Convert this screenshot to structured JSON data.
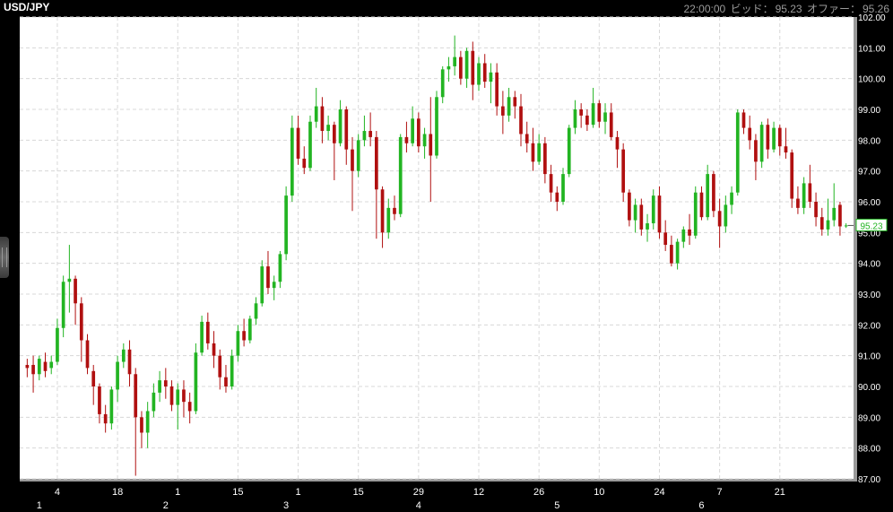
{
  "header": {
    "symbol": "USD/JPY",
    "time": "22:00:00",
    "bid_label": "ビッド：",
    "bid_value": "95.23",
    "offer_label": "オファー：",
    "offer_value": "95.26"
  },
  "colors": {
    "background": "#ffffff",
    "frame": "#000000",
    "up_candle": "#22b422",
    "down_candle": "#b01010",
    "grid": "#d8d8d8",
    "price_badge": "#22b422"
  },
  "chart_data": {
    "type": "candlestick",
    "title": "USD/JPY",
    "ylim": [
      87,
      102
    ],
    "y_ticks": [
      "87.00",
      "88.00",
      "89.00",
      "90.00",
      "91.00",
      "92.00",
      "93.00",
      "94.00",
      "95.00",
      "96.00",
      "97.00",
      "98.00",
      "99.00",
      "100.00",
      "101.00",
      "102.00"
    ],
    "x_ticks_day": [
      "4",
      "18",
      "1",
      "15",
      "1",
      "15",
      "29",
      "12",
      "26",
      "10",
      "24",
      "7",
      "21"
    ],
    "x_ticks_month": [
      "1",
      "2",
      "3",
      "4",
      "5",
      "6"
    ],
    "day_tick_index": [
      5,
      15,
      25,
      35,
      45,
      55,
      65,
      75,
      85,
      95,
      105,
      115,
      125
    ],
    "month_tick_index": [
      2,
      23,
      43,
      65,
      88,
      112
    ],
    "last_price": "95.23",
    "grid": true,
    "ohlc": [
      [
        90.7,
        90.9,
        90.3,
        90.6
      ],
      [
        90.7,
        91.0,
        89.8,
        90.4
      ],
      [
        90.4,
        91.0,
        90.2,
        90.9
      ],
      [
        90.8,
        91.1,
        90.3,
        90.5
      ],
      [
        90.6,
        91.0,
        90.4,
        90.8
      ],
      [
        90.8,
        92.2,
        90.7,
        91.9
      ],
      [
        91.9,
        93.6,
        91.6,
        93.4
      ],
      [
        93.4,
        94.6,
        92.4,
        93.5
      ],
      [
        93.5,
        93.6,
        92.0,
        92.7
      ],
      [
        92.7,
        92.9,
        90.8,
        91.5
      ],
      [
        91.5,
        91.7,
        90.4,
        90.6
      ],
      [
        90.5,
        90.7,
        89.4,
        90.0
      ],
      [
        90.0,
        90.1,
        88.8,
        89.1
      ],
      [
        89.1,
        89.4,
        88.5,
        88.8
      ],
      [
        88.8,
        90.0,
        88.6,
        89.9
      ],
      [
        89.9,
        91.0,
        89.5,
        90.8
      ],
      [
        90.8,
        91.4,
        90.6,
        91.2
      ],
      [
        91.2,
        91.5,
        90.0,
        90.4
      ],
      [
        90.4,
        90.6,
        87.1,
        89.0
      ],
      [
        89.0,
        89.2,
        88.0,
        88.5
      ],
      [
        88.5,
        89.5,
        88.0,
        89.2
      ],
      [
        89.2,
        90.1,
        89.0,
        89.8
      ],
      [
        89.8,
        90.5,
        89.5,
        90.2
      ],
      [
        90.2,
        90.6,
        89.6,
        90.0
      ],
      [
        90.0,
        90.2,
        89.2,
        89.4
      ],
      [
        89.4,
        90.1,
        88.6,
        89.9
      ],
      [
        89.9,
        90.2,
        89.0,
        89.5
      ],
      [
        89.5,
        89.8,
        88.8,
        89.2
      ],
      [
        89.2,
        91.4,
        89.1,
        91.1
      ],
      [
        91.1,
        92.3,
        91.0,
        92.1
      ],
      [
        92.1,
        92.4,
        91.2,
        91.4
      ],
      [
        91.4,
        91.8,
        90.6,
        91.0
      ],
      [
        91.0,
        91.2,
        89.9,
        90.3
      ],
      [
        90.3,
        90.7,
        89.8,
        90.0
      ],
      [
        90.0,
        91.2,
        89.9,
        91.0
      ],
      [
        91.0,
        92.0,
        90.8,
        91.8
      ],
      [
        91.8,
        92.2,
        91.3,
        91.5
      ],
      [
        91.5,
        92.3,
        91.4,
        92.2
      ],
      [
        92.2,
        92.9,
        92.0,
        92.7
      ],
      [
        92.7,
        94.1,
        92.6,
        93.9
      ],
      [
        93.9,
        94.4,
        93.0,
        93.2
      ],
      [
        93.2,
        93.6,
        92.8,
        93.4
      ],
      [
        93.4,
        94.4,
        93.2,
        94.3
      ],
      [
        94.3,
        96.5,
        94.1,
        96.2
      ],
      [
        96.2,
        98.8,
        96.0,
        98.4
      ],
      [
        98.4,
        98.8,
        97.2,
        97.4
      ],
      [
        97.4,
        97.8,
        96.9,
        97.1
      ],
      [
        97.1,
        98.8,
        97.0,
        98.6
      ],
      [
        98.6,
        99.7,
        98.4,
        99.1
      ],
      [
        99.1,
        99.4,
        97.9,
        98.3
      ],
      [
        98.3,
        98.8,
        98.0,
        98.5
      ],
      [
        98.5,
        98.6,
        96.7,
        97.9
      ],
      [
        97.9,
        99.3,
        97.8,
        99.0
      ],
      [
        99.0,
        99.1,
        97.2,
        97.7
      ],
      [
        97.7,
        98.1,
        95.7,
        97.0
      ],
      [
        97.0,
        98.2,
        96.8,
        98.0
      ],
      [
        98.0,
        98.8,
        97.8,
        98.3
      ],
      [
        98.3,
        98.9,
        97.8,
        98.1
      ],
      [
        98.1,
        98.3,
        94.8,
        96.4
      ],
      [
        96.4,
        96.5,
        94.5,
        95.0
      ],
      [
        95.0,
        96.1,
        94.8,
        95.8
      ],
      [
        95.8,
        96.2,
        95.4,
        95.6
      ],
      [
        95.6,
        98.2,
        95.5,
        98.1
      ],
      [
        98.1,
        98.6,
        97.6,
        97.9
      ],
      [
        97.9,
        99.1,
        97.8,
        98.7
      ],
      [
        98.7,
        98.9,
        97.6,
        97.8
      ],
      [
        97.8,
        98.4,
        97.4,
        98.2
      ],
      [
        98.2,
        99.4,
        96.0,
        97.5
      ],
      [
        97.5,
        99.6,
        97.4,
        99.4
      ],
      [
        99.4,
        100.4,
        99.2,
        100.3
      ],
      [
        100.3,
        100.7,
        99.9,
        100.4
      ],
      [
        100.4,
        101.4,
        100.1,
        100.7
      ],
      [
        100.7,
        100.9,
        99.8,
        100.0
      ],
      [
        100.0,
        101.0,
        99.7,
        100.9
      ],
      [
        100.9,
        101.2,
        99.3,
        99.8
      ],
      [
        99.8,
        100.7,
        99.6,
        100.5
      ],
      [
        100.5,
        100.8,
        99.7,
        99.9
      ],
      [
        99.9,
        100.5,
        99.2,
        100.2
      ],
      [
        100.2,
        100.5,
        98.8,
        99.1
      ],
      [
        99.1,
        99.6,
        98.2,
        98.8
      ],
      [
        98.8,
        99.7,
        98.6,
        99.4
      ],
      [
        99.4,
        99.6,
        98.7,
        99.1
      ],
      [
        99.1,
        99.5,
        97.8,
        98.2
      ],
      [
        98.2,
        98.6,
        97.6,
        97.9
      ],
      [
        97.9,
        98.4,
        97.0,
        97.3
      ],
      [
        97.3,
        98.2,
        97.2,
        97.9
      ],
      [
        97.9,
        98.1,
        96.6,
        96.9
      ],
      [
        96.9,
        97.2,
        96.0,
        96.3
      ],
      [
        96.3,
        96.5,
        95.7,
        96.0
      ],
      [
        96.0,
        97.1,
        95.9,
        96.9
      ],
      [
        96.9,
        98.5,
        96.8,
        98.4
      ],
      [
        98.4,
        99.3,
        98.2,
        99.0
      ],
      [
        99.0,
        99.2,
        98.4,
        98.8
      ],
      [
        98.8,
        99.0,
        98.3,
        98.5
      ],
      [
        98.5,
        99.7,
        98.4,
        99.2
      ],
      [
        99.2,
        99.3,
        98.4,
        98.6
      ],
      [
        98.6,
        99.2,
        98.2,
        98.9
      ],
      [
        98.9,
        99.2,
        98.0,
        98.1
      ],
      [
        98.1,
        98.3,
        97.1,
        97.7
      ],
      [
        97.7,
        97.9,
        96.0,
        96.3
      ],
      [
        96.3,
        96.4,
        95.2,
        95.4
      ],
      [
        95.4,
        96.1,
        95.0,
        95.9
      ],
      [
        95.9,
        96.1,
        94.9,
        95.1
      ],
      [
        95.1,
        95.6,
        94.7,
        95.3
      ],
      [
        95.3,
        96.4,
        95.1,
        96.2
      ],
      [
        96.2,
        96.5,
        94.8,
        95.0
      ],
      [
        95.0,
        95.4,
        94.4,
        94.6
      ],
      [
        94.6,
        94.9,
        93.9,
        94.0
      ],
      [
        94.0,
        94.8,
        93.8,
        94.7
      ],
      [
        94.7,
        95.2,
        94.5,
        95.1
      ],
      [
        95.1,
        95.6,
        94.6,
        94.9
      ],
      [
        94.9,
        96.5,
        94.8,
        96.3
      ],
      [
        96.3,
        96.5,
        95.4,
        95.5
      ],
      [
        95.5,
        97.2,
        95.4,
        96.9
      ],
      [
        96.9,
        97.0,
        95.5,
        95.7
      ],
      [
        95.7,
        96.1,
        94.5,
        95.2
      ],
      [
        95.2,
        96.2,
        95.0,
        95.9
      ],
      [
        95.9,
        96.5,
        95.6,
        96.3
      ],
      [
        96.3,
        99.0,
        96.2,
        98.9
      ],
      [
        98.9,
        99.0,
        98.2,
        98.4
      ],
      [
        98.4,
        98.8,
        97.7,
        98.0
      ],
      [
        98.0,
        98.2,
        96.7,
        97.3
      ],
      [
        97.3,
        98.6,
        97.1,
        98.5
      ],
      [
        98.5,
        98.7,
        97.4,
        97.7
      ],
      [
        97.7,
        98.6,
        97.6,
        98.4
      ],
      [
        98.4,
        98.5,
        97.5,
        97.8
      ],
      [
        97.8,
        98.4,
        97.4,
        97.6
      ],
      [
        97.6,
        97.7,
        95.8,
        96.1
      ],
      [
        96.1,
        96.5,
        95.6,
        95.8
      ],
      [
        95.8,
        96.8,
        95.6,
        96.6
      ],
      [
        96.6,
        97.2,
        95.8,
        96.0
      ],
      [
        96.0,
        96.3,
        95.2,
        95.5
      ],
      [
        95.5,
        95.8,
        94.9,
        95.1
      ],
      [
        95.1,
        96.1,
        94.9,
        95.4
      ],
      [
        95.4,
        96.6,
        95.2,
        95.8
      ],
      [
        95.9,
        96.0,
        94.9,
        95.2
      ],
      [
        95.23,
        95.3,
        95.15,
        95.23
      ]
    ]
  }
}
